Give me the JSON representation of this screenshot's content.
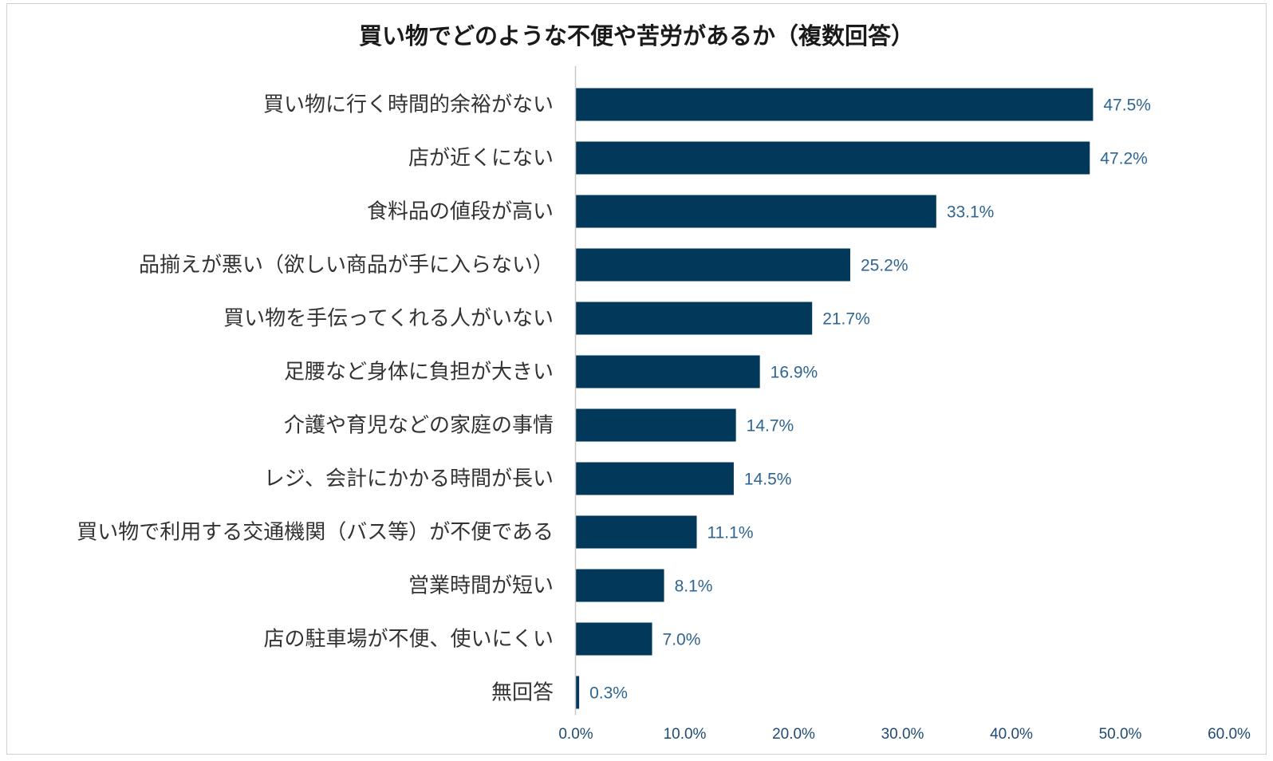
{
  "chart_data": {
    "type": "bar",
    "orientation": "horizontal",
    "title": "買い物でどのような不便や苦労があるか（複数回答）",
    "categories": [
      "買い物に行く時間的余裕がない",
      "店が近くにない",
      "食料品の値段が高い",
      "品揃えが悪い（欲しい商品が手に入らない）",
      "買い物を手伝ってくれる人がいない",
      "足腰など身体に負担が大きい",
      "介護や育児などの家庭の事情",
      "レジ、会計にかかる時間が長い",
      "買い物で利用する交通機関（バス等）が不便である",
      "営業時間が短い",
      "店の駐車場が不便、使いにくい",
      "無回答"
    ],
    "values": [
      47.5,
      47.2,
      33.1,
      25.2,
      21.7,
      16.9,
      14.7,
      14.5,
      11.1,
      8.1,
      7.0,
      0.3
    ],
    "value_labels": [
      "47.5%",
      "47.2%",
      "33.1%",
      "25.2%",
      "21.7%",
      "16.9%",
      "14.7%",
      "14.5%",
      "11.1%",
      "8.1%",
      "7.0%",
      "0.3%"
    ],
    "xlim": [
      0,
      60
    ],
    "x_ticks": [
      0,
      10,
      20,
      30,
      40,
      50,
      60
    ],
    "x_tick_labels": [
      "0.0%",
      "10.0%",
      "20.0%",
      "30.0%",
      "40.0%",
      "50.0%",
      "60.0%"
    ],
    "bar_color": "#023859",
    "label_color": "#2f6591",
    "grid": false,
    "legend": "none"
  }
}
